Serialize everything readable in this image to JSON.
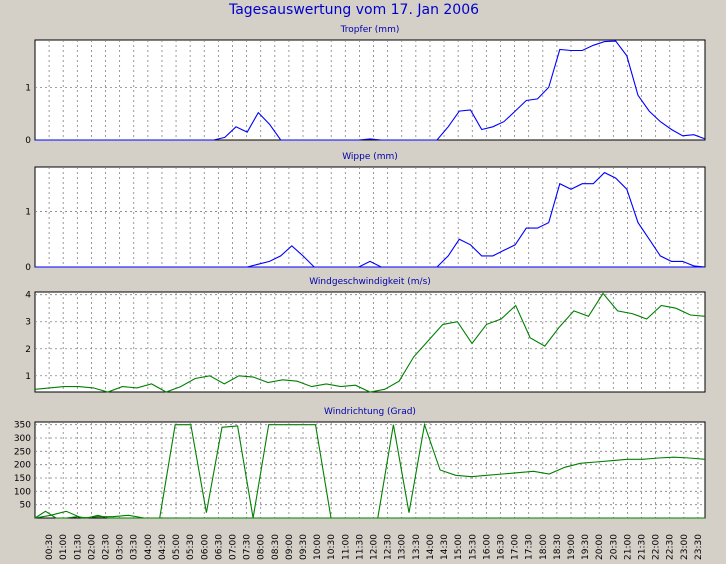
{
  "title": "Tagesauswertung vom 17. Jan 2006",
  "colors": {
    "background": "#d4d0c8",
    "blue_series": "#0000ff",
    "green_series": "#008000",
    "title_blue": "#0000cc"
  },
  "chart_data": [
    {
      "type": "line",
      "title": "Tropfer (mm)",
      "grid": true,
      "ylim": [
        0,
        1.9
      ],
      "yticks": [
        0,
        1
      ],
      "series": [
        {
          "color": "#0000ff",
          "values": [
            0,
            0,
            0,
            0,
            0,
            0,
            0,
            0,
            0,
            0,
            0,
            0,
            0,
            0,
            0,
            0,
            0,
            0.05,
            0.25,
            0.15,
            0.52,
            0.3,
            0,
            0,
            0,
            0,
            0,
            0,
            0,
            0,
            0.02,
            0,
            0,
            0,
            0,
            0,
            0,
            0.25,
            0.55,
            0.57,
            0.2,
            0.25,
            0.35,
            0.55,
            0.75,
            0.78,
            1.0,
            1.72,
            1.7,
            1.7,
            1.8,
            1.87,
            1.88,
            1.6,
            0.85,
            0.55,
            0.35,
            0.2,
            0.08,
            0.1,
            0.02
          ]
        }
      ]
    },
    {
      "type": "line",
      "title": "Wippe (mm)",
      "grid": true,
      "ylim": [
        0,
        1.8
      ],
      "yticks": [
        0,
        1
      ],
      "series": [
        {
          "color": "#0000ff",
          "values": [
            0,
            0,
            0,
            0,
            0,
            0,
            0,
            0,
            0,
            0,
            0,
            0,
            0,
            0,
            0,
            0,
            0,
            0,
            0,
            0,
            0,
            0,
            0,
            0,
            0,
            0,
            0,
            0,
            0,
            0,
            0,
            0,
            0,
            0,
            0,
            0,
            0,
            0,
            0,
            0,
            0,
            0,
            0,
            0,
            0,
            0,
            0,
            0,
            0,
            0,
            0,
            0,
            0,
            0,
            0,
            0,
            0,
            0,
            0,
            0,
            0
          ]
        },
        {
          "color": "#0000ff",
          "values": [
            0,
            0,
            0,
            0,
            0,
            0,
            0,
            0,
            0,
            0,
            0,
            0,
            0,
            0,
            0,
            0,
            0,
            0,
            0,
            0,
            0.05,
            0.1,
            0.2,
            0.38,
            0.2,
            0,
            0,
            0,
            0,
            0,
            0.1,
            0,
            0,
            0,
            0,
            0,
            0,
            0.2,
            0.5,
            0.4,
            0.2,
            0.2,
            0.3,
            0.4,
            0.7,
            0.7,
            0.8,
            1.5,
            1.4,
            1.5,
            1.5,
            1.7,
            1.6,
            1.4,
            0.8,
            0.5,
            0.2,
            0.1,
            0.1,
            0.02,
            0
          ]
        }
      ]
    },
    {
      "type": "line",
      "title": "Windgeschwindigkeit (m/s)",
      "grid": true,
      "ylim": [
        0.4,
        4.1
      ],
      "yticks": [
        1,
        2,
        3,
        4
      ],
      "series": [
        {
          "color": "#008000",
          "values": [
            0.5,
            0.55,
            0.6,
            0.6,
            0.55,
            0.4,
            0.6,
            0.55,
            0.7,
            0.4,
            0.6,
            0.9,
            1.0,
            0.7,
            1.0,
            0.95,
            0.75,
            0.85,
            0.8,
            0.6,
            0.7,
            0.6,
            0.65,
            0.4,
            0.5,
            0.8,
            1.7,
            2.3,
            2.9,
            3.0,
            2.2,
            2.9,
            3.1,
            3.6,
            2.4,
            2.1,
            2.8,
            3.4,
            3.2,
            4.05,
            3.4,
            3.3,
            3.1,
            3.6,
            3.5,
            3.25,
            3.2
          ]
        }
      ]
    },
    {
      "type": "line",
      "title": "Windrichtung (Grad)",
      "grid": true,
      "ylim": [
        0,
        360
      ],
      "yticks": [
        50,
        100,
        150,
        200,
        250,
        300,
        350
      ],
      "series": [
        {
          "color": "#008000",
          "values": [
            0,
            25,
            0,
            0,
            5,
            0,
            10,
            0,
            0,
            0,
            0,
            0,
            0,
            0,
            0,
            0,
            0,
            0,
            0,
            0,
            0,
            0,
            0,
            0,
            0,
            0,
            0,
            0,
            0,
            0,
            0,
            0,
            0,
            0,
            0,
            0,
            0,
            0,
            0,
            0,
            0,
            0,
            0,
            0,
            0,
            0,
            0,
            0,
            0,
            0,
            0,
            0,
            0,
            0,
            0,
            0,
            0,
            0,
            0,
            0,
            0,
            0,
            0,
            0,
            0
          ]
        },
        {
          "color": "#008000",
          "values": [
            0,
            10,
            25,
            0,
            5,
            5,
            10,
            0,
            0,
            350,
            350,
            20,
            340,
            345,
            0,
            350,
            350,
            350,
            350,
            0,
            0,
            0,
            0,
            350,
            20,
            350,
            180,
            160,
            155,
            160,
            165,
            170,
            175,
            165,
            190,
            205,
            210,
            215,
            220,
            220,
            225,
            228,
            225,
            220
          ]
        }
      ]
    }
  ],
  "x_tick_labels": [
    "00:30",
    "01:00",
    "01:30",
    "02:00",
    "02:30",
    "03:00",
    "03:30",
    "04:00",
    "04:30",
    "05:00",
    "05:30",
    "06:00",
    "06:30",
    "07:00",
    "07:30",
    "08:00",
    "08:30",
    "09:00",
    "09:30",
    "10:00",
    "10:30",
    "11:00",
    "11:30",
    "12:00",
    "12:30",
    "13:00",
    "13:30",
    "14:00",
    "14:30",
    "15:00",
    "15:30",
    "16:00",
    "16:30",
    "17:00",
    "17:30",
    "18:00",
    "18:30",
    "19:00",
    "19:30",
    "20:00",
    "20:30",
    "21:00",
    "21:30",
    "22:00",
    "22:30",
    "23:00",
    "23:30"
  ]
}
